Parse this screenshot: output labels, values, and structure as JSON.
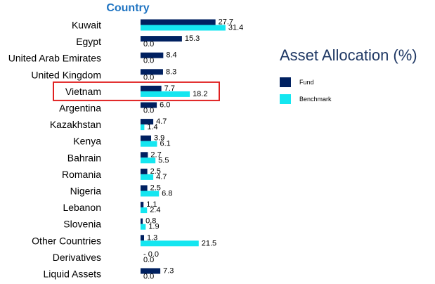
{
  "chart_data": {
    "type": "bar",
    "orientation": "horizontal",
    "title": "Asset Allocation (%)",
    "column_header": "Country",
    "categories": [
      "Kuwait",
      "Egypt",
      "United Arab Emirates",
      "United Kingdom",
      "Vietnam",
      "Argentina",
      "Kazakhstan",
      "Kenya",
      "Bahrain",
      "Romania",
      "Nigeria",
      "Lebanon",
      "Slovenia",
      "Other Countries",
      "Derivatives",
      "Liquid Assets"
    ],
    "series": [
      {
        "name": "Fund",
        "color": "#002060",
        "values": [
          27.7,
          15.3,
          8.4,
          8.3,
          7.7,
          6.0,
          4.7,
          3.9,
          2.7,
          2.5,
          2.5,
          1.1,
          0.8,
          1.3,
          0.0,
          7.3
        ],
        "labels": [
          "27.7",
          "15.3",
          "8.4",
          "8.3",
          "7.7",
          "6.0",
          "4.7",
          "3.9",
          "2.7",
          "2.5",
          "2.5",
          "1.1",
          "0.8",
          "1.3",
          "- 0.0",
          "7.3"
        ]
      },
      {
        "name": "Benchmark",
        "color": "#14e6f0",
        "values": [
          31.4,
          0.0,
          0.0,
          0.0,
          18.2,
          0.0,
          1.4,
          6.1,
          5.5,
          4.7,
          6.8,
          2.4,
          1.9,
          21.5,
          0.0,
          0.0
        ],
        "labels": [
          "31.4",
          "0.0",
          "0.0",
          "0.0",
          "18.2",
          "0.0",
          "1.4",
          "6.1",
          "5.5",
          "4.7",
          "6.8",
          "2.4",
          "1.9",
          "21.5",
          "0.0",
          "0.0"
        ]
      }
    ],
    "highlighted_category": "Vietnam",
    "highlight_color": "#e02020",
    "legend": [
      "Fund",
      "Benchmark"
    ],
    "legend_position": "right",
    "grid": false
  }
}
